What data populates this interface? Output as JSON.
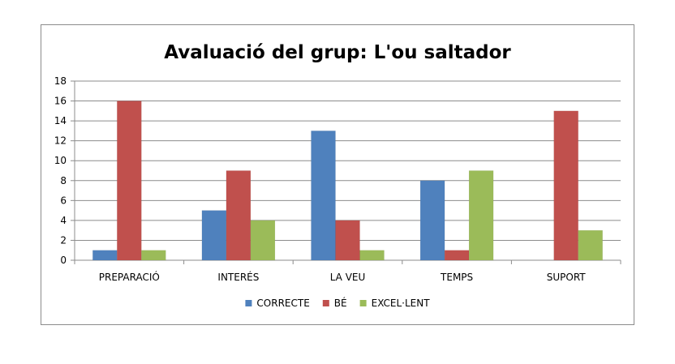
{
  "chart_data": {
    "type": "bar",
    "title": "Avaluació del grup: L'ou saltador",
    "xlabel": "",
    "ylabel": "",
    "ylim": [
      0,
      18
    ],
    "yticks": [
      0,
      2,
      4,
      6,
      8,
      10,
      12,
      14,
      16,
      18
    ],
    "grid": true,
    "legend_position": "bottom",
    "categories": [
      "PREPARACIÓ",
      "INTERÉS",
      "LA VEU",
      "TEMPS",
      "SUPORT"
    ],
    "series": [
      {
        "name": "CORRECTE",
        "color": "#4f81bd",
        "values": [
          1,
          5,
          13,
          8,
          0
        ]
      },
      {
        "name": "BÉ",
        "color": "#c0504d",
        "values": [
          16,
          9,
          4,
          1,
          15
        ]
      },
      {
        "name": "EXCEL·LENT",
        "color": "#9bbb59",
        "values": [
          1,
          4,
          1,
          9,
          3
        ]
      }
    ]
  }
}
